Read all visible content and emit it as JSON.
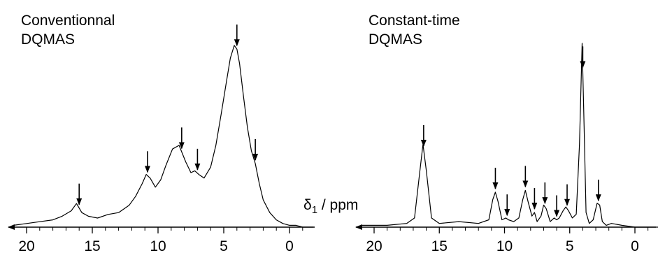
{
  "chart_data": [
    {
      "type": "line",
      "title": "Conventionnal\nDQMAS",
      "title_lines": [
        "Conventionnal",
        "DQMAS"
      ],
      "xlabel_prefix": "δ",
      "xlabel_sub": "1",
      "xlabel_suffix": " / ppm",
      "xlim": [
        20.8,
        -1.8
      ],
      "x_reversed": true,
      "xticks": [
        20,
        15,
        10,
        5,
        0
      ],
      "ylim": [
        0,
        1
      ],
      "grid": false,
      "series": [
        {
          "x": [
            21.0,
            20.0,
            19.0,
            18.0,
            17.3,
            16.6,
            16.2,
            15.8,
            15.3,
            14.6,
            13.8,
            13.0,
            12.2,
            11.7,
            11.2,
            10.9,
            10.6,
            10.2,
            9.8,
            9.4,
            8.9,
            8.4,
            7.9,
            7.5,
            7.2,
            6.9,
            6.5,
            6.0,
            5.6,
            5.2,
            4.8,
            4.5,
            4.2,
            4.0,
            3.8,
            3.5,
            3.2,
            2.9,
            2.6,
            2.3,
            2.0,
            1.5,
            1.0,
            0.5,
            0.0,
            -0.5,
            -1.0,
            -1.8
          ],
          "y": [
            0.01,
            0.02,
            0.03,
            0.04,
            0.06,
            0.09,
            0.13,
            0.08,
            0.06,
            0.05,
            0.07,
            0.08,
            0.12,
            0.17,
            0.24,
            0.29,
            0.27,
            0.22,
            0.26,
            0.34,
            0.43,
            0.45,
            0.36,
            0.3,
            0.31,
            0.29,
            0.27,
            0.33,
            0.45,
            0.62,
            0.8,
            0.93,
            1.0,
            0.98,
            0.9,
            0.72,
            0.55,
            0.42,
            0.35,
            0.24,
            0.15,
            0.08,
            0.04,
            0.02,
            0.01,
            0.01,
            0.0,
            0.0
          ]
        }
      ],
      "peak_arrows": [
        16.0,
        10.8,
        8.2,
        7.0,
        4.0,
        2.6
      ]
    },
    {
      "type": "line",
      "title": "Constant-time\nDQMAS",
      "title_lines": [
        "Constant-time",
        "DQMAS"
      ],
      "xlim": [
        20.8,
        -1.8
      ],
      "x_reversed": true,
      "xticks": [
        20,
        15,
        10,
        5,
        0
      ],
      "ylim": [
        0,
        1
      ],
      "grid": false,
      "series": [
        {
          "x": [
            21.0,
            19.0,
            17.5,
            16.9,
            16.5,
            16.25,
            16.0,
            15.6,
            15.0,
            13.5,
            12.0,
            11.2,
            10.9,
            10.7,
            10.5,
            10.2,
            9.9,
            9.7,
            9.3,
            8.9,
            8.6,
            8.4,
            8.2,
            7.9,
            7.7,
            7.5,
            7.2,
            7.0,
            6.8,
            6.5,
            6.2,
            6.0,
            5.8,
            5.5,
            5.3,
            5.1,
            4.8,
            4.5,
            4.25,
            4.05,
            3.9,
            3.75,
            3.5,
            3.2,
            2.9,
            2.7,
            2.5,
            2.2,
            1.8,
            1.0,
            0.0,
            -1.8
          ],
          "y": [
            0.01,
            0.01,
            0.02,
            0.05,
            0.3,
            0.45,
            0.31,
            0.05,
            0.02,
            0.03,
            0.02,
            0.04,
            0.15,
            0.19,
            0.14,
            0.04,
            0.05,
            0.04,
            0.03,
            0.05,
            0.15,
            0.2,
            0.14,
            0.06,
            0.08,
            0.03,
            0.06,
            0.12,
            0.1,
            0.03,
            0.05,
            0.04,
            0.05,
            0.09,
            0.11,
            0.09,
            0.05,
            0.07,
            0.45,
            1.0,
            0.55,
            0.08,
            0.02,
            0.04,
            0.13,
            0.12,
            0.03,
            0.01,
            0.02,
            0.01,
            0.0,
            0.0
          ]
        }
      ],
      "peak_arrows": [
        16.2,
        10.7,
        9.8,
        8.4,
        7.7,
        6.9,
        6.0,
        5.2,
        4.0,
        2.8
      ]
    }
  ]
}
